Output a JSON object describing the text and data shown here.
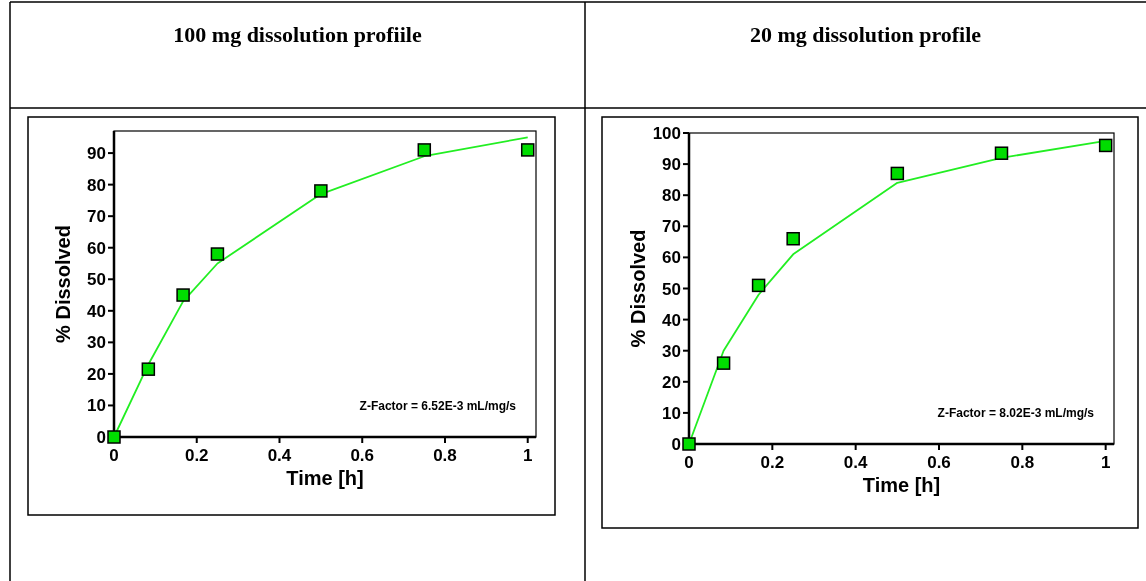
{
  "chart_data": [
    {
      "type": "scatter",
      "title": "100 mg dissolution profiile",
      "xlabel": "Time [h]",
      "ylabel": "% Dissolved",
      "xlim": [
        0,
        1.02
      ],
      "ylim": [
        0,
        97
      ],
      "xticks": [
        0,
        0.2,
        0.4,
        0.6,
        0.8,
        1
      ],
      "yticks": [
        0,
        10,
        20,
        30,
        40,
        50,
        60,
        70,
        80,
        90
      ],
      "grid": false,
      "annotations": [
        "Z-Factor = 6.52E-3 mL/mg/s"
      ],
      "series": [
        {
          "type": "line",
          "color": "#22ee22",
          "marker": "none",
          "line_style": "solid",
          "x": [
            0,
            0.083,
            0.167,
            0.25,
            0.5,
            0.75,
            1
          ],
          "values": [
            0,
            23,
            43,
            55,
            77,
            89,
            95
          ]
        },
        {
          "color": "#00dd00",
          "marker": "square",
          "x": [
            0,
            0.083,
            0.167,
            0.25,
            0.5,
            0.75,
            1
          ],
          "values": [
            0,
            21.5,
            45,
            58,
            78,
            91,
            91
          ]
        }
      ]
    },
    {
      "type": "scatter",
      "title": "20 mg dissolution profile",
      "xlabel": "Time [h]",
      "ylabel": "% Dissolved",
      "xlim": [
        0,
        1.02
      ],
      "ylim": [
        0,
        100
      ],
      "xticks": [
        0,
        0.2,
        0.4,
        0.6,
        0.8,
        1
      ],
      "yticks": [
        0,
        10,
        20,
        30,
        40,
        50,
        60,
        70,
        80,
        90,
        100
      ],
      "grid": false,
      "annotations": [
        "Z-Factor = 8.02E-3 mL/mg/s"
      ],
      "series": [
        {
          "type": "line",
          "color": "#22ee22",
          "marker": "none",
          "line_style": "solid",
          "x": [
            0,
            0.083,
            0.167,
            0.25,
            0.5,
            0.75,
            1
          ],
          "values": [
            0,
            30,
            48,
            61,
            84,
            92,
            97.5
          ]
        },
        {
          "color": "#00dd00",
          "marker": "square",
          "x": [
            0,
            0.083,
            0.167,
            0.25,
            0.5,
            0.75,
            1
          ],
          "values": [
            0,
            26,
            51,
            66,
            87,
            93.5,
            96
          ]
        }
      ]
    }
  ]
}
